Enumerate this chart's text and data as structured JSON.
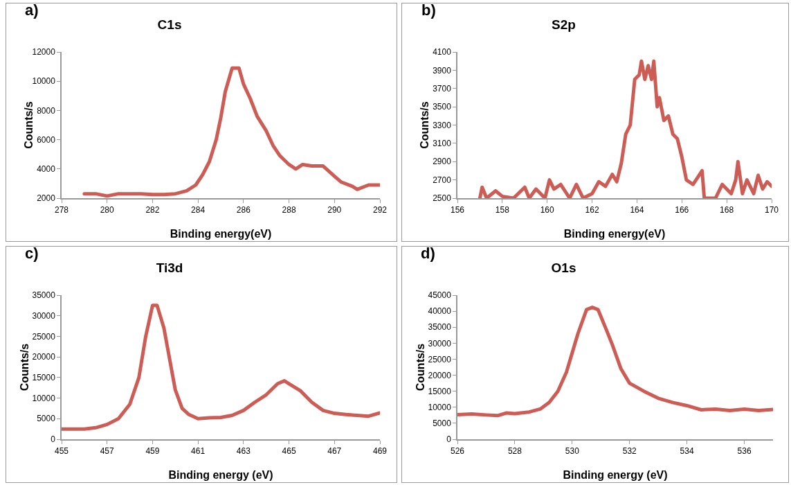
{
  "chart_data": [
    {
      "type": "line",
      "title": "C1s",
      "annotations": [
        "a)"
      ],
      "xlabel": "Binding energy(eV)",
      "ylabel": "Counts/s",
      "xlim": [
        278,
        292
      ],
      "xticks": [
        278,
        280,
        282,
        284,
        286,
        288,
        290,
        292
      ],
      "ylim": [
        2000,
        12000
      ],
      "yticks": [
        2000,
        4000,
        6000,
        8000,
        10000,
        12000
      ],
      "line_style": "solid",
      "series": [
        {
          "color": "#cd5c55",
          "x": [
            279,
            279.5,
            280,
            280.5,
            281,
            281.5,
            282,
            282.5,
            283,
            283.5,
            283.9,
            284.2,
            284.5,
            284.8,
            285,
            285.2,
            285.5,
            285.8,
            286,
            286.3,
            286.6,
            287,
            287.3,
            287.6,
            288,
            288.3,
            288.6,
            289,
            289.5,
            290,
            290.3,
            290.8,
            291,
            291.5,
            292
          ],
          "values": [
            2300,
            2300,
            2150,
            2300,
            2300,
            2300,
            2250,
            2250,
            2300,
            2500,
            2900,
            3600,
            4500,
            6000,
            7500,
            9300,
            10900,
            10900,
            9800,
            8800,
            7600,
            6600,
            5600,
            4900,
            4300,
            4000,
            4300,
            4200,
            4200,
            3500,
            3100,
            2800,
            2600,
            2900,
            2900
          ]
        }
      ]
    },
    {
      "type": "line",
      "title": "S2p",
      "annotations": [
        "b)"
      ],
      "xlabel": "Binding energy(eV)",
      "ylabel": "Counts/s",
      "xlim": [
        156,
        170
      ],
      "xticks": [
        156,
        158,
        160,
        162,
        164,
        166,
        168,
        170
      ],
      "ylim": [
        2500,
        4100
      ],
      "yticks": [
        2500,
        2700,
        2900,
        3100,
        3300,
        3500,
        3700,
        3900,
        4100
      ],
      "line_style": "solid",
      "series": [
        {
          "color": "#cd5c55",
          "x": [
            157,
            157.1,
            157.3,
            157.7,
            158,
            158.5,
            159,
            159.2,
            159.5,
            159.9,
            160.1,
            160.3,
            160.6,
            161,
            161.3,
            161.6,
            162,
            162.3,
            162.6,
            162.9,
            163.1,
            163.3,
            163.5,
            163.7,
            163.9,
            164.1,
            164.2,
            164.35,
            164.5,
            164.65,
            164.75,
            164.9,
            165,
            165.2,
            165.4,
            165.6,
            165.8,
            166,
            166.2,
            166.5,
            166.9,
            167,
            167.5,
            167.8,
            168.2,
            168.4,
            168.5,
            168.7,
            168.9,
            169.2,
            169.4,
            169.6,
            169.8,
            170
          ],
          "values": [
            2500,
            2620,
            2500,
            2580,
            2520,
            2500,
            2620,
            2500,
            2600,
            2500,
            2700,
            2600,
            2650,
            2500,
            2650,
            2500,
            2550,
            2680,
            2630,
            2760,
            2680,
            2880,
            3200,
            3300,
            3800,
            3850,
            4000,
            3800,
            3950,
            3800,
            4000,
            3500,
            3600,
            3350,
            3400,
            3200,
            3150,
            2950,
            2700,
            2650,
            2800,
            2500,
            2500,
            2650,
            2550,
            2700,
            2900,
            2550,
            2700,
            2550,
            2750,
            2600,
            2680,
            2630
          ]
        }
      ]
    },
    {
      "type": "line",
      "title": "Ti3d",
      "annotations": [
        "c)"
      ],
      "xlabel": "Binding energy (eV)",
      "ylabel": "Counts/s",
      "xlim": [
        455,
        469
      ],
      "xticks": [
        455,
        457,
        459,
        461,
        463,
        465,
        467,
        469
      ],
      "ylim": [
        0,
        35000
      ],
      "yticks": [
        0,
        5000,
        10000,
        15000,
        20000,
        25000,
        30000,
        35000
      ],
      "line_style": "solid",
      "series": [
        {
          "color": "#cd5c55",
          "x": [
            455,
            456,
            456.5,
            457,
            457.5,
            458,
            458.4,
            458.7,
            459,
            459.2,
            459.5,
            459.8,
            460,
            460.3,
            460.6,
            461,
            461.5,
            462,
            462.5,
            463,
            463.5,
            464,
            464.5,
            464.8,
            465,
            465.5,
            466,
            466.5,
            467,
            467.5,
            468,
            468.5,
            469
          ],
          "values": [
            2500,
            2500,
            2800,
            3600,
            5000,
            8500,
            15000,
            25000,
            32500,
            32500,
            27000,
            18000,
            12000,
            7500,
            6000,
            5000,
            5200,
            5300,
            5800,
            7000,
            9000,
            10800,
            13500,
            14200,
            13500,
            11800,
            9000,
            7000,
            6300,
            6000,
            5800,
            5600,
            6400
          ]
        }
      ]
    },
    {
      "type": "line",
      "title": "O1s",
      "annotations": [
        "d)"
      ],
      "xlabel": "Binding energy (eV)",
      "ylabel": "Counts/s",
      "xlim": [
        526,
        537
      ],
      "xticks": [
        526,
        528,
        530,
        532,
        534,
        536
      ],
      "ylim": [
        0,
        45000
      ],
      "yticks": [
        0,
        5000,
        10000,
        15000,
        20000,
        25000,
        30000,
        35000,
        40000,
        45000
      ],
      "line_style": "solid",
      "series": [
        {
          "color": "#cd5c55",
          "x": [
            526,
            526.5,
            527,
            527.4,
            527.7,
            528,
            528.5,
            528.9,
            529.2,
            529.5,
            529.8,
            530,
            530.2,
            530.5,
            530.7,
            530.9,
            531.2,
            531.4,
            531.7,
            532,
            532.5,
            533,
            533.5,
            534,
            534.5,
            535,
            535.5,
            536,
            536.5,
            537
          ],
          "values": [
            7700,
            7900,
            7600,
            7400,
            8200,
            8000,
            8500,
            9500,
            11500,
            15000,
            21000,
            27000,
            33000,
            40500,
            41200,
            40500,
            34000,
            29500,
            22000,
            17500,
            15000,
            12800,
            11500,
            10500,
            9200,
            9400,
            9000,
            9400,
            9000,
            9300
          ]
        }
      ]
    }
  ]
}
